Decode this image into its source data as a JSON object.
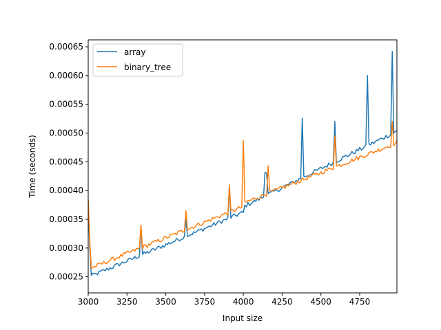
{
  "chart_data": {
    "type": "line",
    "xlabel": "Input size",
    "ylabel": "Time (seconds)",
    "xlim": [
      3000,
      4990
    ],
    "ylim": [
      0.000222,
      0.000662
    ],
    "xticks": [
      3000,
      3250,
      3500,
      3750,
      4000,
      4250,
      4500,
      4750
    ],
    "xtick_labels": [
      "3000",
      "3250",
      "3500",
      "3750",
      "4000",
      "4250",
      "4500",
      "4750"
    ],
    "yticks": [
      0.00025,
      0.0003,
      0.00035,
      0.0004,
      0.00045,
      0.0005,
      0.00055,
      0.0006,
      0.00065
    ],
    "ytick_labels": [
      "0.00025",
      "0.00030",
      "0.00035",
      "0.00040",
      "0.00045",
      "0.00050",
      "0.00055",
      "0.00060",
      "0.00065"
    ],
    "grid": false,
    "legend_position": "upper-left",
    "series": [
      {
        "name": "array",
        "color": "#1f77b4",
        "x_start": 3000,
        "x_step": 10,
        "base_points": [
          [
            3000,
            0.000248
          ],
          [
            3990,
            0.00036
          ],
          [
            4000,
            0.00036
          ],
          [
            4010,
            0.000372
          ],
          [
            4990,
            0.000502
          ]
        ],
        "spikes": [
          [
            3000,
            0.00038
          ],
          [
            3010,
            0.0003
          ],
          [
            3340,
            0.000338
          ],
          [
            3630,
            0.00035
          ],
          [
            3910,
            0.000405
          ],
          [
            4140,
            0.000432
          ],
          [
            4150,
            0.00043
          ],
          [
            4380,
            0.000526
          ],
          [
            4590,
            0.00052
          ],
          [
            4800,
            0.0006
          ],
          [
            4960,
            0.000642
          ]
        ]
      },
      {
        "name": "binary_tree",
        "color": "#ff7f0e",
        "x_start": 3000,
        "x_step": 10,
        "base_points": [
          [
            3000,
            0.000262
          ],
          [
            3990,
            0.00037
          ],
          [
            4000,
            0.00037
          ],
          [
            4010,
            0.000378
          ],
          [
            4990,
            0.000482
          ]
        ],
        "spikes": [
          [
            3000,
            0.000385
          ],
          [
            3010,
            0.000312
          ],
          [
            3340,
            0.00034
          ],
          [
            3630,
            0.000365
          ],
          [
            3910,
            0.00041
          ],
          [
            4000,
            0.000487
          ],
          [
            4160,
            0.000443
          ],
          [
            4590,
            0.000495
          ],
          [
            4960,
            0.00052
          ]
        ]
      }
    ]
  }
}
